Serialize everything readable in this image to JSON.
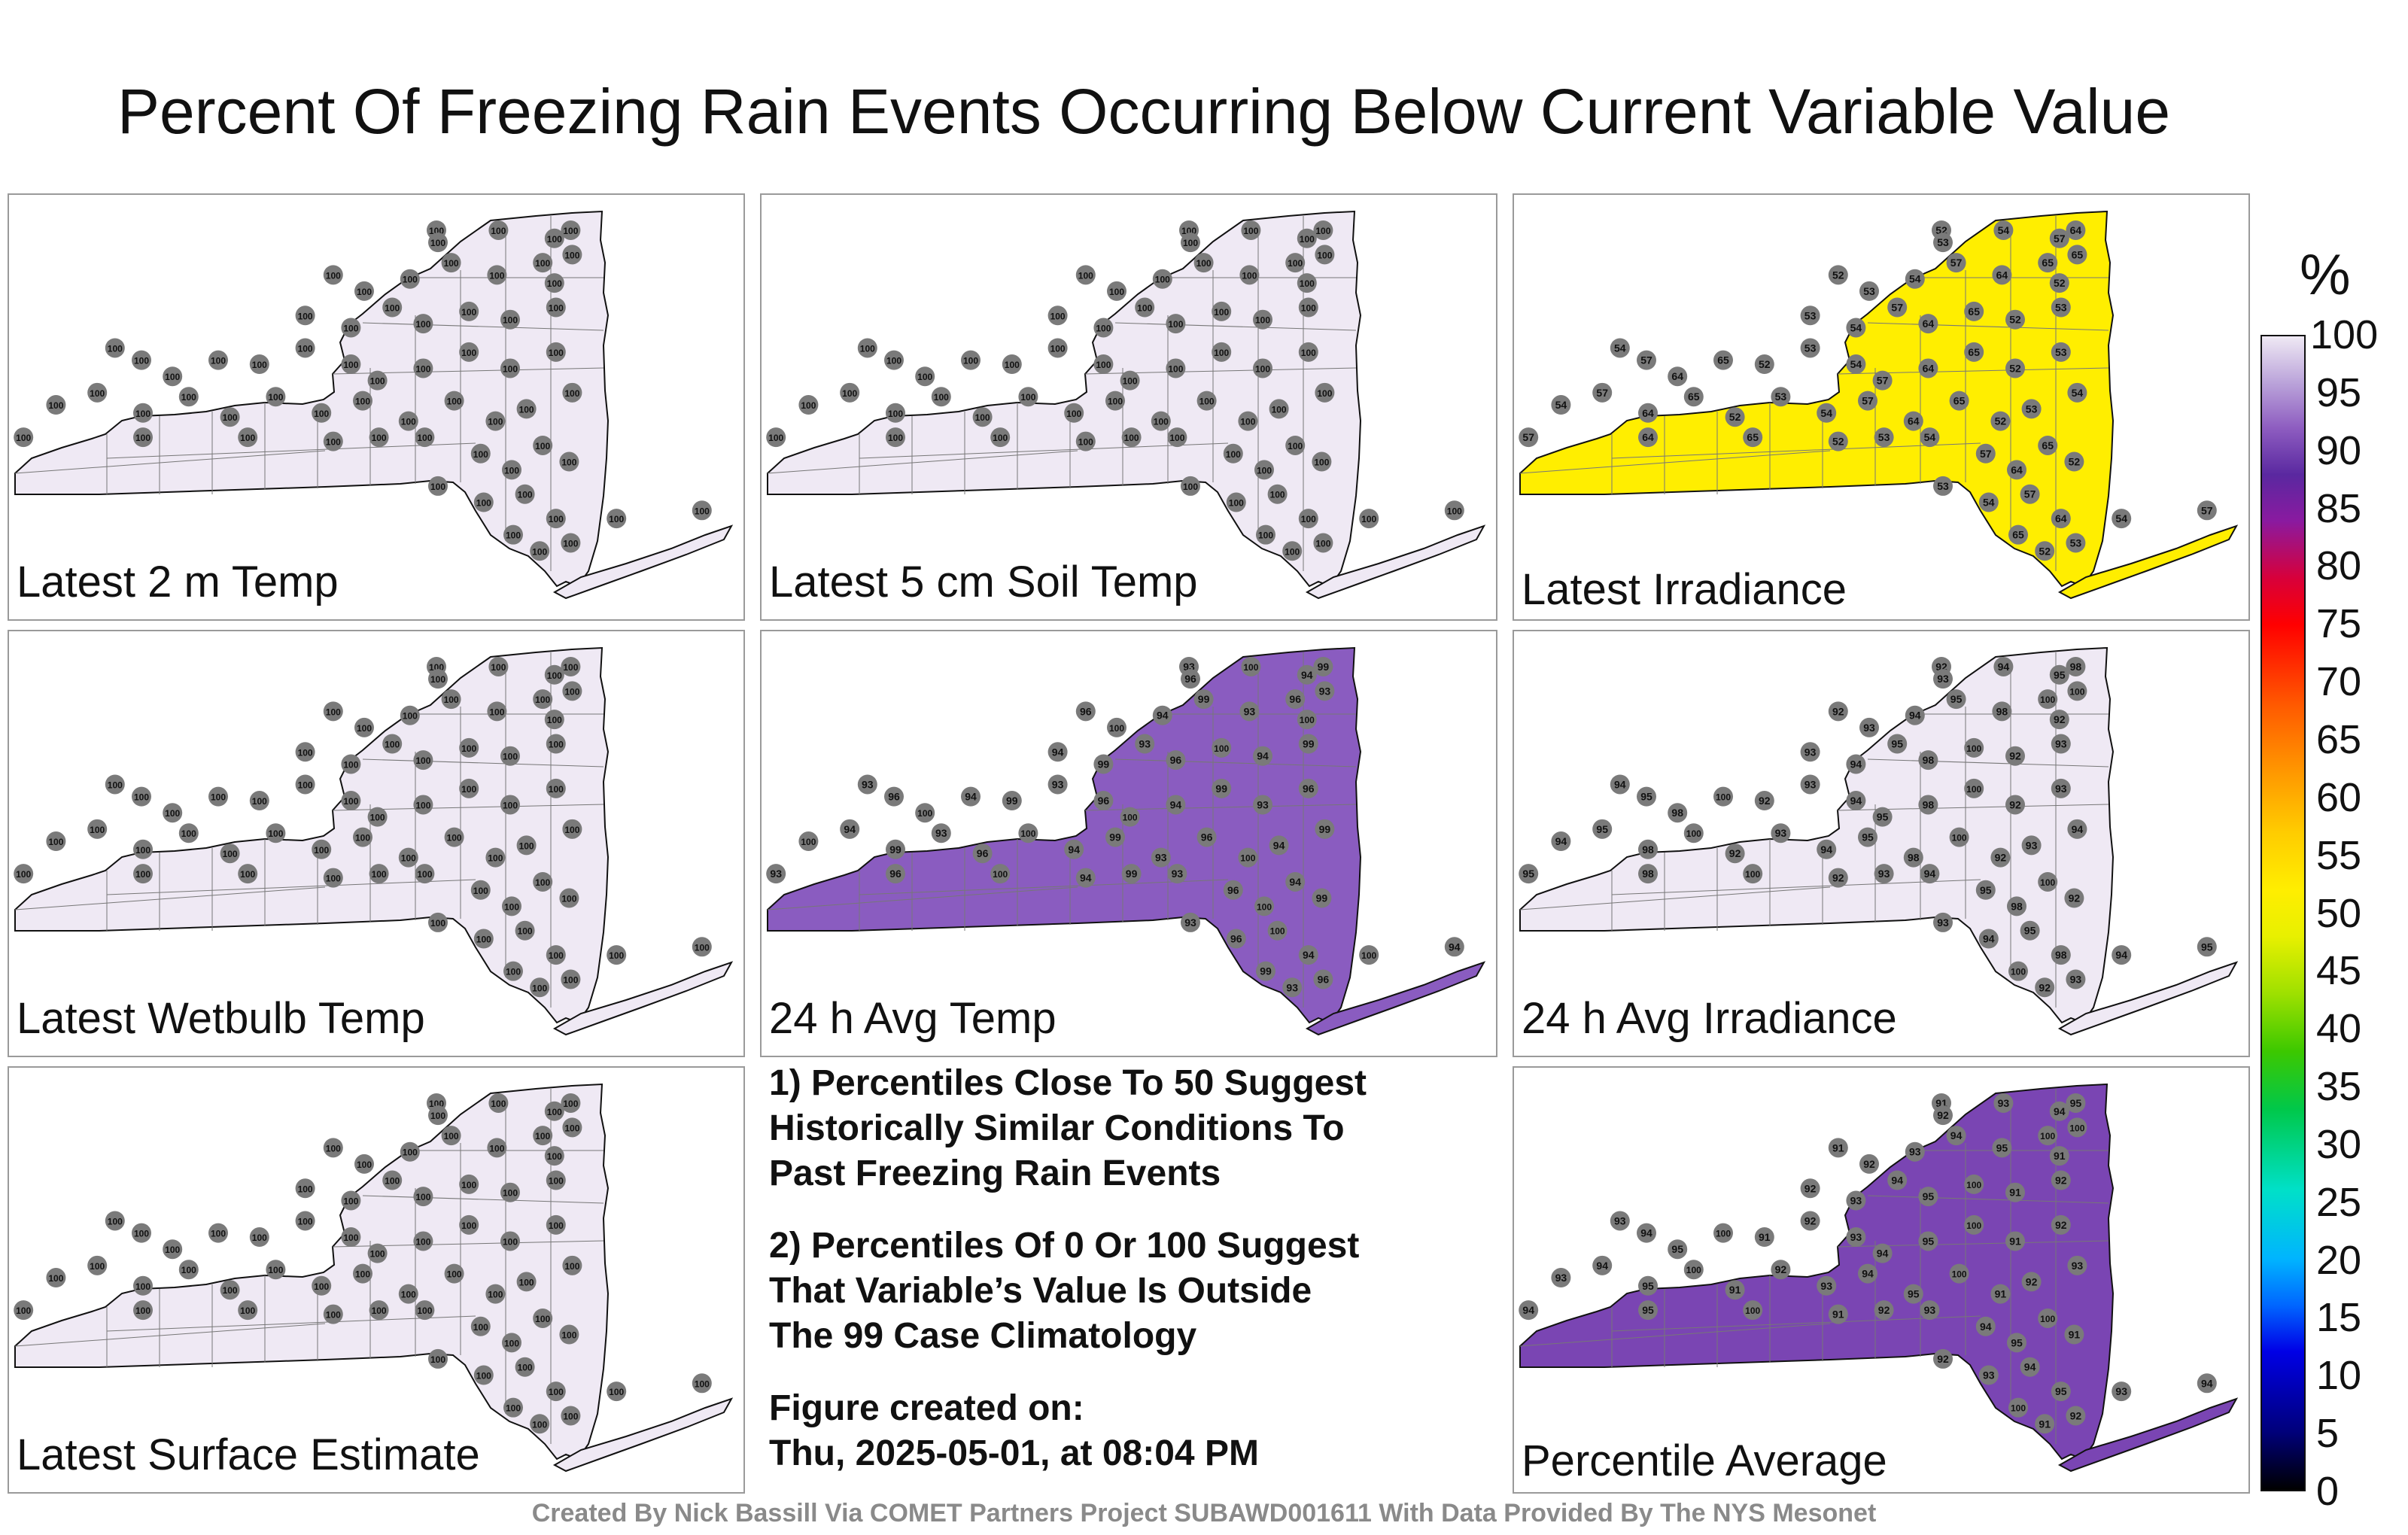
{
  "title": "Percent Of Freezing Rain Events Occurring Below Current Variable Value",
  "panels": [
    {
      "label": "Latest 2 m Temp",
      "fill": "#efe9f4",
      "station_values": [
        100
      ]
    },
    {
      "label": "Latest 5 cm Soil Temp",
      "fill": "#efe9f4",
      "station_values": [
        100
      ]
    },
    {
      "label": "Latest Irradiance",
      "fill": "#ffee00",
      "station_values": [
        52,
        53,
        54,
        57,
        64,
        65
      ]
    },
    {
      "label": "Latest Wetbulb Temp",
      "fill": "#efe9f4",
      "station_values": [
        100
      ]
    },
    {
      "label": "24 h Avg Temp",
      "fill": "#8a5cc0",
      "station_values": [
        93,
        94,
        96,
        99,
        100
      ]
    },
    {
      "label": "24 h Avg Irradiance",
      "fill": "#efe9f4",
      "station_values": [
        92,
        93,
        94,
        95,
        98,
        100
      ]
    },
    {
      "label": "Latest Surface Estimate",
      "fill": "#efe9f4",
      "station_values": [
        100
      ]
    },
    {
      "label": "Percentile Average",
      "fill": "#7a45b3",
      "station_values": [
        91,
        92,
        93,
        94,
        95,
        100
      ]
    }
  ],
  "notes": [
    {
      "lines": [
        "1) Percentiles Close To 50 Suggest",
        "Historically Similar Conditions To",
        "Past Freezing Rain Events"
      ]
    },
    {
      "lines": [
        "2) Percentiles Of 0 Or 100 Suggest",
        "That Variable’s Value Is Outside",
        "The 99 Case Climatology"
      ]
    },
    {
      "lines": [
        "Figure created on:",
        "Thu, 2025-05-01, at 08:04 PM"
      ]
    }
  ],
  "colorbar": {
    "unit": "%",
    "ticks": [
      "100",
      "95",
      "90",
      "85",
      "80",
      "75",
      "70",
      "65",
      "60",
      "55",
      "50",
      "45",
      "40",
      "35",
      "30",
      "25",
      "20",
      "15",
      "10",
      "5",
      "0"
    ]
  },
  "credit": "Created By Nick Bassill Via COMET Partners Project SUBAWD001611 With Data Provided By The NYS Mesonet"
}
